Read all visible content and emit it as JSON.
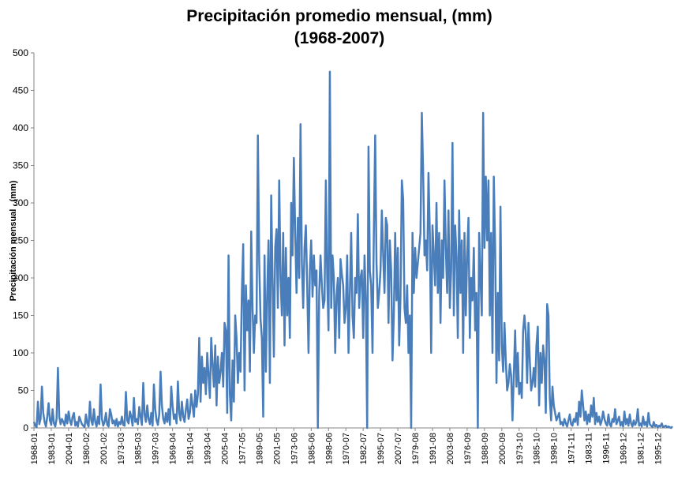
{
  "chart_data": {
    "type": "line",
    "title": [
      "Precipitación promedio mensual, (mm)",
      "(1968-2007)"
    ],
    "y_label": "Precipitación mensual , (mm)",
    "categories": [
      "1968-01",
      null,
      null,
      null,
      null,
      null,
      null,
      null,
      null,
      null,
      null,
      null,
      null,
      "1983-01",
      null,
      null,
      null,
      null,
      null,
      null,
      null,
      null,
      null,
      null,
      null,
      null,
      "2004-01",
      null,
      null,
      null,
      null,
      null,
      null,
      null,
      null,
      null,
      null,
      null,
      null,
      "1980-02",
      null,
      null,
      null,
      null,
      null,
      null,
      null,
      null,
      null,
      null,
      null,
      null,
      "2001-02",
      null,
      null,
      null,
      null,
      null,
      null,
      null,
      null,
      null,
      null,
      null,
      null,
      "1973-03",
      null,
      null,
      null,
      null,
      null,
      null,
      null,
      null,
      null,
      null,
      null,
      null,
      "1985-03",
      null,
      null,
      null,
      null,
      null,
      null,
      null,
      null,
      null,
      null,
      null,
      null,
      "1997-03",
      null,
      null,
      null,
      null,
      null,
      null,
      null,
      null,
      null,
      null,
      null,
      null,
      "1969-04",
      null,
      null,
      null,
      null,
      null,
      null,
      null,
      null,
      null,
      null,
      null,
      null,
      "1981-04",
      null,
      null,
      null,
      null,
      null,
      null,
      null,
      null,
      null,
      null,
      null,
      null,
      "1993-04",
      null,
      null,
      null,
      null,
      null,
      null,
      null,
      null,
      null,
      null,
      null,
      null,
      "2005-04",
      null,
      null,
      null,
      null,
      null,
      null,
      null,
      null,
      null,
      null,
      null,
      null,
      "1977-05",
      null,
      null,
      null,
      null,
      null,
      null,
      null,
      null,
      null,
      null,
      null,
      null,
      "1989-05",
      null,
      null,
      null,
      null,
      null,
      null,
      null,
      null,
      null,
      null,
      null,
      null,
      "2001-05",
      null,
      null,
      null,
      null,
      null,
      null,
      null,
      null,
      null,
      null,
      null,
      null,
      "1973-06",
      null,
      null,
      null,
      null,
      null,
      null,
      null,
      null,
      null,
      null,
      null,
      null,
      "1985-06",
      null,
      null,
      null,
      null,
      null,
      null,
      null,
      null,
      null,
      null,
      null,
      null,
      "1998-06",
      null,
      null,
      null,
      null,
      null,
      null,
      null,
      null,
      null,
      null,
      null,
      null,
      "1970-07",
      null,
      null,
      null,
      null,
      null,
      null,
      null,
      null,
      null,
      null,
      null,
      null,
      "1982-07",
      null,
      null,
      null,
      null,
      null,
      null,
      null,
      null,
      null,
      null,
      null,
      null,
      "1995-07",
      null,
      null,
      null,
      null,
      null,
      null,
      null,
      null,
      null,
      null,
      null,
      null,
      "2007-07",
      null,
      null,
      null,
      null,
      null,
      null,
      null,
      null,
      null,
      null,
      null,
      null,
      "1979-08",
      null,
      null,
      null,
      null,
      null,
      null,
      null,
      null,
      null,
      null,
      null,
      null,
      "1991-08",
      null,
      null,
      null,
      null,
      null,
      null,
      null,
      null,
      null,
      null,
      null,
      null,
      "2003-08",
      null,
      null,
      null,
      null,
      null,
      null,
      null,
      null,
      null,
      null,
      null,
      null,
      "1976-09",
      null,
      null,
      null,
      null,
      null,
      null,
      null,
      null,
      null,
      null,
      null,
      null,
      "1988-09",
      null,
      null,
      null,
      null,
      null,
      null,
      null,
      null,
      null,
      null,
      null,
      null,
      "2000-09",
      null,
      null,
      null,
      null,
      null,
      null,
      null,
      null,
      null,
      null,
      null,
      null,
      "1973-10",
      null,
      null,
      null,
      null,
      null,
      null,
      null,
      null,
      null,
      null,
      null,
      null,
      "1985-10",
      null,
      null,
      null,
      null,
      null,
      null,
      null,
      null,
      null,
      null,
      null,
      null,
      "1998-10",
      null,
      null,
      null,
      null,
      null,
      null,
      null,
      null,
      null,
      null,
      null,
      null,
      "1971-11",
      null,
      null,
      null,
      null,
      null,
      null,
      null,
      null,
      null,
      null,
      null,
      null,
      "1983-11",
      null,
      null,
      null,
      null,
      null,
      null,
      null,
      null,
      null,
      null,
      null,
      null,
      "1996-11",
      null,
      null,
      null,
      null,
      null,
      null,
      null,
      null,
      null,
      null,
      null,
      null,
      "1969-12",
      null,
      null,
      null,
      null,
      null,
      null,
      null,
      null,
      null,
      null,
      null,
      null,
      "1981-12",
      null,
      null,
      null,
      null,
      null,
      null,
      null,
      null,
      null,
      null,
      null,
      null,
      "1995-12",
      null,
      null,
      null,
      null,
      null,
      null,
      null,
      null,
      null,
      null,
      null
    ],
    "series": [
      {
        "name": "Precipitación mensual",
        "color": "#4a7ebb",
        "values": [
          8,
          3,
          1,
          35,
          5,
          12,
          55,
          20,
          8,
          2,
          15,
          33,
          10,
          4,
          25,
          6,
          2,
          12,
          80,
          15,
          5,
          12,
          8,
          3,
          18,
          6,
          22,
          10,
          4,
          15,
          20,
          3,
          8,
          2,
          15,
          10,
          5,
          3,
          1,
          18,
          6,
          2,
          35,
          10,
          4,
          25,
          8,
          2,
          15,
          5,
          58,
          12,
          3,
          8,
          20,
          4,
          2,
          25,
          18,
          6,
          10,
          3,
          12,
          2,
          8,
          5,
          15,
          4,
          3,
          48,
          10,
          6,
          22,
          15,
          3,
          40,
          8,
          12,
          5,
          28,
          15,
          4,
          60,
          18,
          8,
          30,
          12,
          5,
          20,
          3,
          58,
          25,
          10,
          4,
          18,
          75,
          30,
          12,
          6,
          20,
          8,
          25,
          4,
          55,
          30,
          12,
          18,
          6,
          62,
          20,
          10,
          35,
          15,
          8,
          25,
          38,
          12,
          20,
          45,
          30,
          15,
          50,
          28,
          45,
          120,
          35,
          95,
          60,
          80,
          45,
          100,
          70,
          40,
          120,
          85,
          55,
          110,
          30,
          95,
          60,
          75,
          100,
          55,
          140,
          130,
          20,
          230,
          45,
          10,
          90,
          35,
          150,
          120,
          60,
          100,
          75,
          180,
          245,
          50,
          190,
          130,
          170,
          75,
          262,
          160,
          100,
          150,
          140,
          390,
          220,
          145,
          120,
          15,
          230,
          75,
          180,
          250,
          60,
          310,
          200,
          95,
          240,
          265,
          160,
          330,
          200,
          150,
          260,
          110,
          240,
          150,
          200,
          120,
          300,
          230,
          360,
          260,
          180,
          280,
          200,
          405,
          220,
          160,
          240,
          270,
          190,
          100,
          210,
          250,
          175,
          230,
          190,
          210,
          0,
          180,
          230,
          190,
          160,
          170,
          330,
          200,
          130,
          475,
          160,
          230,
          200,
          100,
          175,
          200,
          120,
          225,
          205,
          190,
          140,
          160,
          230,
          100,
          180,
          260,
          150,
          120,
          200,
          180,
          285,
          160,
          200,
          210,
          120,
          230,
          170,
          0,
          375,
          210,
          190,
          100,
          260,
          390,
          220,
          160,
          180,
          210,
          290,
          230,
          180,
          280,
          270,
          140,
          250,
          210,
          90,
          150,
          260,
          170,
          240,
          110,
          175,
          330,
          305,
          160,
          140,
          190,
          100,
          150,
          0,
          260,
          180,
          240,
          200,
          220,
          240,
          260,
          420,
          340,
          230,
          250,
          210,
          340,
          260,
          100,
          270,
          230,
          190,
          300,
          180,
          260,
          140,
          250,
          200,
          330,
          240,
          180,
          290,
          160,
          210,
          380,
          150,
          270,
          230,
          120,
          290,
          180,
          250,
          100,
          260,
          150,
          230,
          280,
          120,
          200,
          170,
          240,
          130,
          180,
          0,
          260,
          200,
          150,
          420,
          240,
          335,
          250,
          330,
          150,
          260,
          100,
          335,
          240,
          60,
          180,
          90,
          295,
          110,
          75,
          140,
          90,
          50,
          60,
          85,
          70,
          10,
          70,
          130,
          55,
          100,
          45,
          60,
          40,
          130,
          150,
          125,
          60,
          140,
          90,
          50,
          60,
          80,
          55,
          110,
          135,
          30,
          100,
          60,
          110,
          90,
          20,
          165,
          150,
          40,
          10,
          55,
          30,
          20,
          10,
          15,
          20,
          5,
          8,
          3,
          12,
          6,
          2,
          10,
          18,
          5,
          3,
          12,
          8,
          20,
          4,
          35,
          15,
          50,
          30,
          10,
          22,
          5,
          18,
          8,
          30,
          15,
          40,
          5,
          20,
          8,
          15,
          4,
          10,
          22,
          12,
          6,
          3,
          18,
          5,
          2,
          12,
          8,
          25,
          5,
          10,
          15,
          3,
          8,
          2,
          22,
          5,
          12,
          3,
          18,
          6,
          2,
          10,
          4,
          8,
          25,
          3,
          6,
          2,
          15,
          4,
          8,
          2,
          20,
          5,
          3,
          1,
          8,
          2,
          4,
          1,
          3,
          2,
          6,
          1,
          2,
          3,
          1,
          2,
          1,
          0,
          2
        ]
      }
    ],
    "ylim": [
      0,
      500
    ],
    "yticks": [
      0,
      50,
      100,
      150,
      200,
      250,
      300,
      350,
      400,
      450,
      500
    ],
    "grid": false
  }
}
